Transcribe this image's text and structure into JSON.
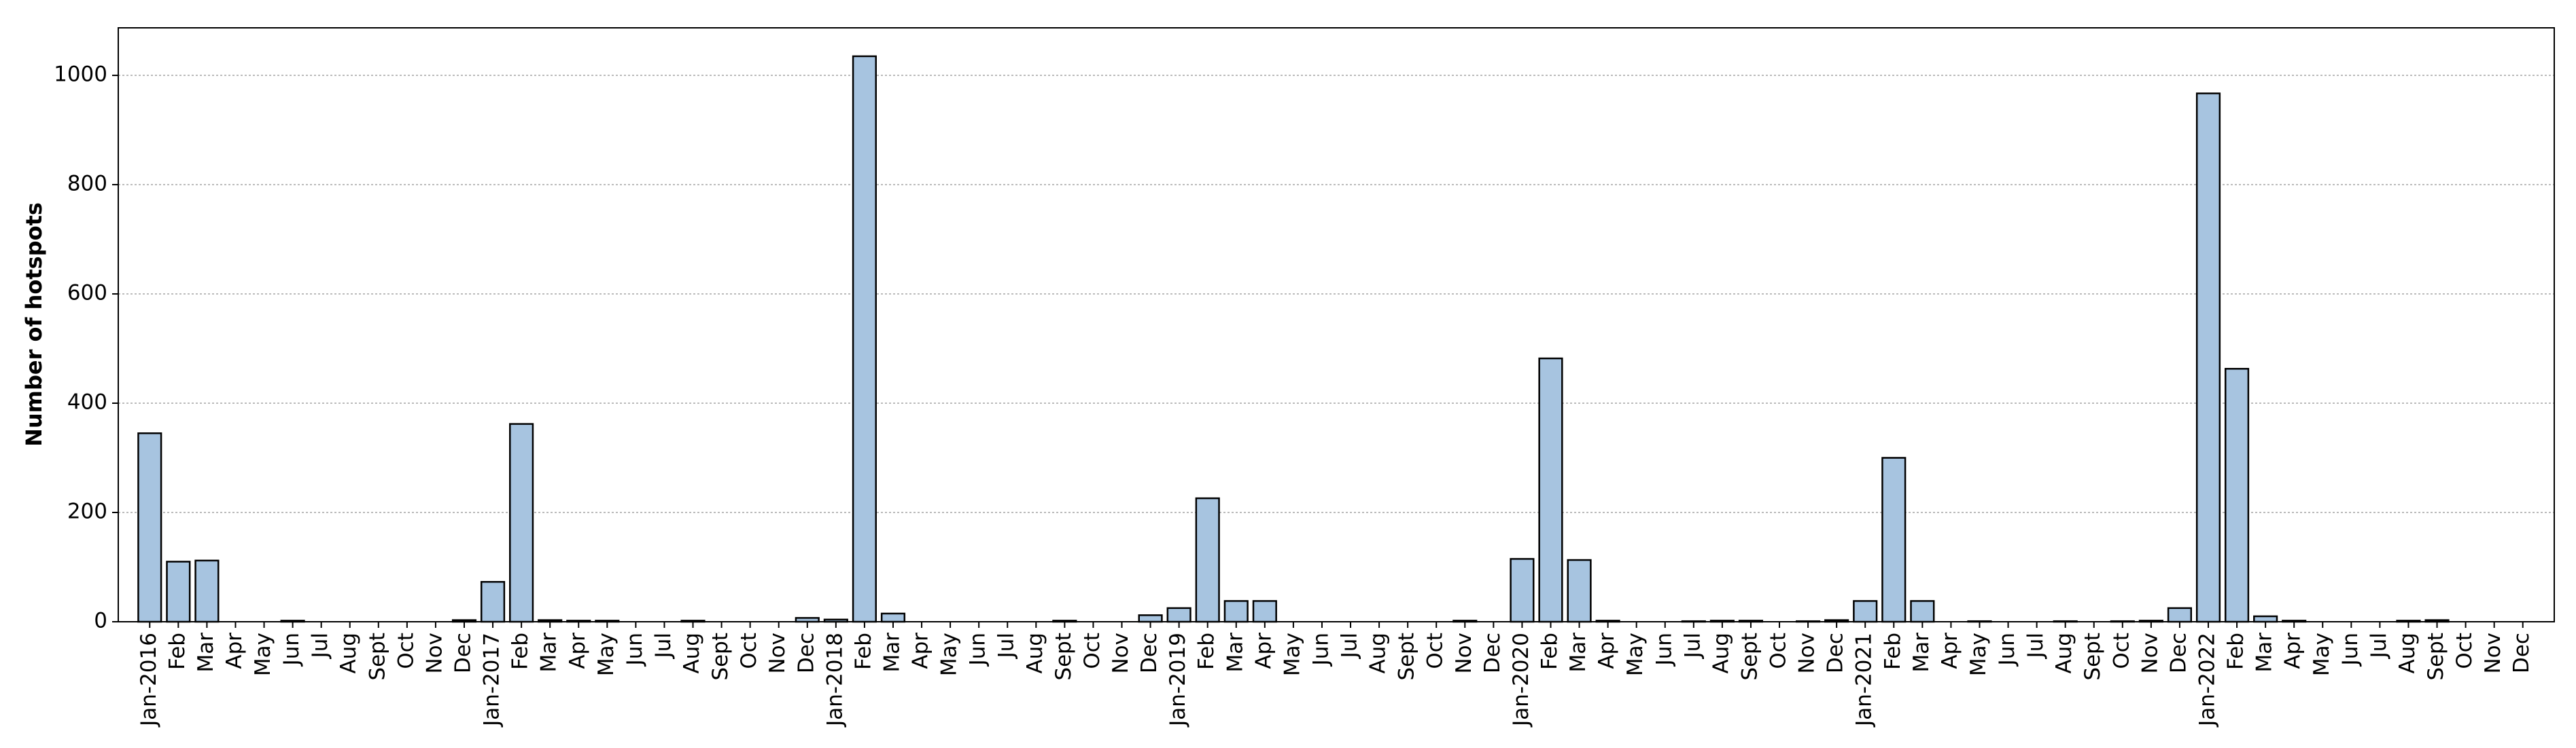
{
  "chart_data": {
    "type": "bar",
    "y_label": "Number of hotspots",
    "categories": [
      "Jan-2016",
      "Feb",
      "Mar",
      "Apr",
      "May",
      "Jun",
      "Jul",
      "Aug",
      "Sept",
      "Oct",
      "Nov",
      "Dec",
      "Jan-2017",
      "Feb",
      "Mar",
      "Apr",
      "May",
      "Jun",
      "Jul",
      "Aug",
      "Sept",
      "Oct",
      "Nov",
      "Dec",
      "Jan-2018",
      "Feb",
      "Mar",
      "Apr",
      "May",
      "Jun",
      "Jul",
      "Aug",
      "Sept",
      "Oct",
      "Nov",
      "Dec",
      "Jan-2019",
      "Feb",
      "Mar",
      "Apr",
      "May",
      "Jun",
      "Jul",
      "Aug",
      "Sept",
      "Oct",
      "Nov",
      "Dec",
      "Jan-2020",
      "Feb",
      "Mar",
      "Apr",
      "May",
      "Jun",
      "Jul",
      "Aug",
      "Sept",
      "Oct",
      "Nov",
      "Dec",
      "Jan-2021",
      "Feb",
      "Mar",
      "Apr",
      "May",
      "Jun",
      "Jul",
      "Aug",
      "Sept",
      "Oct",
      "Nov",
      "Dec",
      "Jan-2022",
      "Feb",
      "Mar",
      "Apr",
      "May",
      "Jun",
      "Jul",
      "Aug",
      "Sept",
      "Oct",
      "Nov",
      "Dec"
    ],
    "values": [
      345,
      110,
      112,
      0,
      0,
      2,
      0,
      0,
      0,
      0,
      0,
      3,
      73,
      362,
      3,
      2,
      2,
      0,
      0,
      2,
      0,
      0,
      0,
      7,
      4,
      1035,
      15,
      0,
      0,
      0,
      0,
      0,
      2,
      0,
      0,
      12,
      25,
      226,
      38,
      38,
      0,
      0,
      0,
      0,
      0,
      0,
      2,
      0,
      115,
      482,
      113,
      2,
      0,
      0,
      1,
      2,
      2,
      0,
      1,
      3,
      38,
      300,
      38,
      0,
      1,
      0,
      0,
      1,
      0,
      1,
      2,
      25,
      967,
      463,
      10,
      2,
      0,
      0,
      0,
      2,
      3,
      0,
      0,
      0
    ],
    "color": "#a7c4e0",
    "ylim": [
      0,
      1087
    ],
    "yticks": [
      0,
      200,
      400,
      600,
      800,
      1000
    ],
    "grid": true
  }
}
